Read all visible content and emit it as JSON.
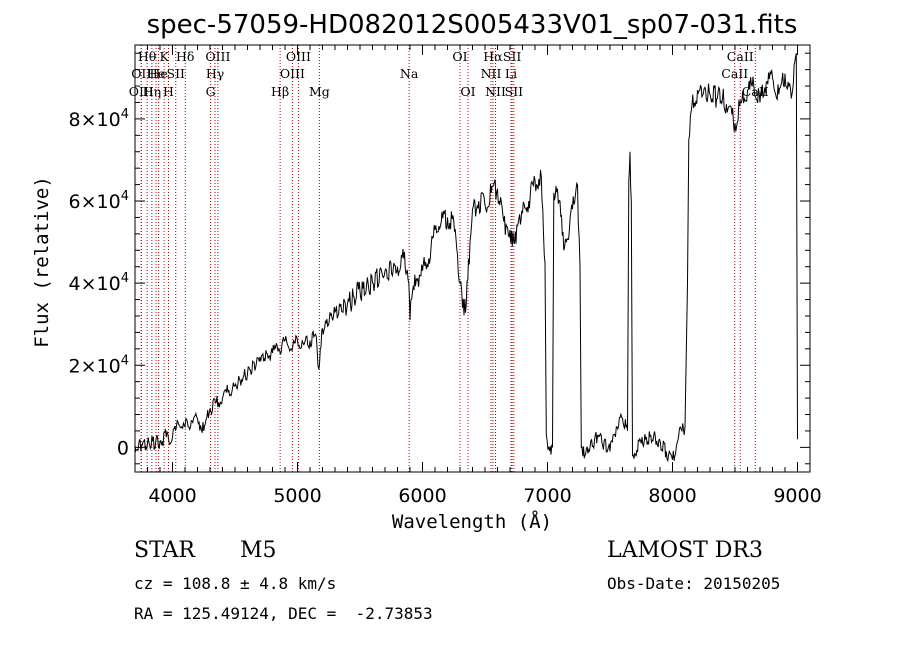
{
  "chart_data": {
    "type": "line",
    "title": "spec-57059-HD082012S005433V01_sp07-031.fits",
    "xlabel": "Wavelength (Å)",
    "ylabel": "Flux (relative)",
    "xlim": [
      3700,
      9100
    ],
    "ylim": [
      -6000,
      98000
    ],
    "x_ticks": [
      4000,
      5000,
      6000,
      7000,
      8000,
      9000
    ],
    "y_ticks": [
      {
        "value": 0,
        "mantissa": "0",
        "exponent": ""
      },
      {
        "value": 20000,
        "mantissa": "2×10",
        "exponent": "4"
      },
      {
        "value": 40000,
        "mantissa": "4×10",
        "exponent": "4"
      },
      {
        "value": 60000,
        "mantissa": "6×10",
        "exponent": "4"
      },
      {
        "value": 80000,
        "mantissa": "8×10",
        "exponent": "4"
      }
    ],
    "grid": false,
    "series": [
      {
        "color": "#000000",
        "points": [
          [
            3700,
            500
          ],
          [
            3800,
            1000
          ],
          [
            3900,
            1500
          ],
          [
            3950,
            2500
          ],
          [
            4000,
            2500
          ],
          [
            4050,
            5500
          ],
          [
            4100,
            5000
          ],
          [
            4150,
            6500
          ],
          [
            4200,
            7000
          ],
          [
            4250,
            4000
          ],
          [
            4300,
            9500
          ],
          [
            4350,
            11000
          ],
          [
            4400,
            12000
          ],
          [
            4450,
            14000
          ],
          [
            4500,
            15000
          ],
          [
            4600,
            18000
          ],
          [
            4700,
            22000
          ],
          [
            4800,
            23000
          ],
          [
            4850,
            24000
          ],
          [
            4900,
            26000
          ],
          [
            4950,
            24000
          ],
          [
            5000,
            26000
          ],
          [
            5050,
            25000
          ],
          [
            5100,
            26000
          ],
          [
            5150,
            27000
          ],
          [
            5170,
            19000
          ],
          [
            5200,
            29000
          ],
          [
            5300,
            33000
          ],
          [
            5400,
            35000
          ],
          [
            5500,
            38000
          ],
          [
            5600,
            40000
          ],
          [
            5700,
            43000
          ],
          [
            5800,
            44000
          ],
          [
            5850,
            46000
          ],
          [
            5890,
            40000
          ],
          [
            5900,
            31000
          ],
          [
            5920,
            38000
          ],
          [
            5950,
            41000
          ],
          [
            6000,
            43000
          ],
          [
            6050,
            46000
          ],
          [
            6100,
            53000
          ],
          [
            6150,
            55000
          ],
          [
            6200,
            56000
          ],
          [
            6250,
            55000
          ],
          [
            6280,
            47000
          ],
          [
            6300,
            40000
          ],
          [
            6320,
            34000
          ],
          [
            6350,
            35000
          ],
          [
            6380,
            50000
          ],
          [
            6400,
            58000
          ],
          [
            6450,
            60000
          ],
          [
            6500,
            59000
          ],
          [
            6550,
            62000
          ],
          [
            6600,
            63000
          ],
          [
            6650,
            55000
          ],
          [
            6700,
            53000
          ],
          [
            6730,
            50000
          ],
          [
            6760,
            54000
          ],
          [
            6800,
            57000
          ],
          [
            6850,
            60000
          ],
          [
            6900,
            65000
          ],
          [
            6950,
            66000
          ],
          [
            6980,
            45000
          ],
          [
            6990,
            3000
          ],
          [
            7010,
            0
          ],
          [
            7040,
            0
          ],
          [
            7050,
            62000
          ],
          [
            7080,
            63000
          ],
          [
            7100,
            60000
          ],
          [
            7130,
            48000
          ],
          [
            7150,
            50000
          ],
          [
            7200,
            58000
          ],
          [
            7240,
            64000
          ],
          [
            7260,
            44000
          ],
          [
            7270,
            0
          ],
          [
            7300,
            -2000
          ],
          [
            7400,
            3000
          ],
          [
            7500,
            -1000
          ],
          [
            7550,
            5000
          ],
          [
            7600,
            7000
          ],
          [
            7640,
            4000
          ],
          [
            7650,
            65000
          ],
          [
            7660,
            72000
          ],
          [
            7670,
            60000
          ],
          [
            7680,
            -2000
          ],
          [
            7750,
            1000
          ],
          [
            7850,
            3000
          ],
          [
            7950,
            -1000
          ],
          [
            8000,
            -3000
          ],
          [
            8050,
            3000
          ],
          [
            8100,
            5000
          ],
          [
            8120,
            40000
          ],
          [
            8130,
            75000
          ],
          [
            8150,
            82000
          ],
          [
            8200,
            87000
          ],
          [
            8300,
            86000
          ],
          [
            8400,
            85000
          ],
          [
            8450,
            83000
          ],
          [
            8500,
            79000
          ],
          [
            8550,
            84000
          ],
          [
            8600,
            87000
          ],
          [
            8650,
            88000
          ],
          [
            8700,
            84000
          ],
          [
            8750,
            89000
          ],
          [
            8800,
            90000
          ],
          [
            8850,
            86000
          ],
          [
            8900,
            91000
          ],
          [
            8950,
            85000
          ],
          [
            8990,
            96000
          ],
          [
            9000,
            2000
          ]
        ]
      }
    ],
    "lines_color": "#aa0000",
    "spectral_lines": [
      {
        "x": 3750,
        "label": "OII",
        "row": 1
      },
      {
        "x": 3750,
        "label": "OIII",
        "row": 2
      },
      {
        "x": 3797,
        "label": "Hθ",
        "row": 0
      },
      {
        "x": 3835,
        "label": "Hη",
        "row": 2
      },
      {
        "x": 3868,
        "label": "He",
        "row": 1
      },
      {
        "x": 3889,
        "label": "He",
        "row": 1
      },
      {
        "x": 3933,
        "label": "K",
        "row": 0
      },
      {
        "x": 3968,
        "label": "H",
        "row": 2
      },
      {
        "x": 4026,
        "label": "SII",
        "row": 1
      },
      {
        "x": 4102,
        "label": "Hδ",
        "row": 0
      },
      {
        "x": 4305,
        "label": "G",
        "row": 2
      },
      {
        "x": 4340,
        "label": "Hγ",
        "row": 1
      },
      {
        "x": 4363,
        "label": "OIII",
        "row": 0
      },
      {
        "x": 4861,
        "label": "Hβ",
        "row": 2
      },
      {
        "x": 4959,
        "label": "OIII",
        "row": 1
      },
      {
        "x": 5007,
        "label": "OIII",
        "row": 0
      },
      {
        "x": 5175,
        "label": "Mg",
        "row": 2
      },
      {
        "x": 5893,
        "label": "Na",
        "row": 1
      },
      {
        "x": 6300,
        "label": "OI",
        "row": 0
      },
      {
        "x": 6364,
        "label": "OI",
        "row": 2
      },
      {
        "x": 6548,
        "label": "NII",
        "row": 1
      },
      {
        "x": 6563,
        "label": "Hα",
        "row": 0
      },
      {
        "x": 6584,
        "label": "NII",
        "row": 2
      },
      {
        "x": 6708,
        "label": "Li",
        "row": 1
      },
      {
        "x": 6717,
        "label": "SII",
        "row": 0
      },
      {
        "x": 6731,
        "label": "SII",
        "row": 2
      },
      {
        "x": 8498,
        "label": "CaII",
        "row": 1
      },
      {
        "x": 8542,
        "label": "CaII",
        "row": 0
      },
      {
        "x": 8662,
        "label": "CaII",
        "row": 2
      }
    ]
  },
  "info": {
    "object_class": "STAR",
    "subclass": "M5",
    "survey": "LAMOST DR3",
    "cz": "cz = 108.8 ± 4.8 km/s",
    "obs_date": "Obs-Date: 20150205",
    "coords": "RA = 125.49124, DEC =  -2.73853"
  }
}
